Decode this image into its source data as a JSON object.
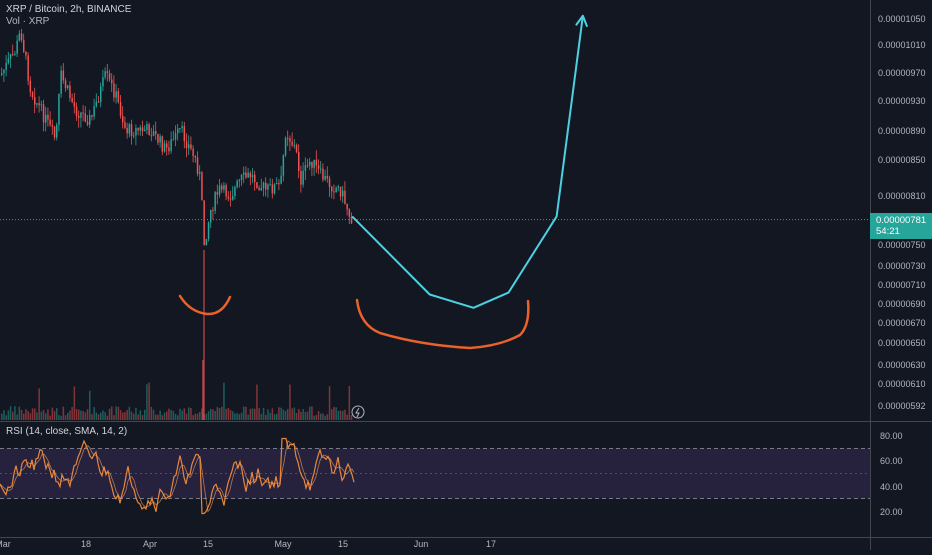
{
  "header": {
    "symbol": "XRP / Bitcoin, 2h, BINANCE",
    "volume": "Vol · XRP"
  },
  "rsi_header": {
    "label": "RSI (14, close, SMA, 14, 2)"
  },
  "last_price": {
    "value": "0.00000781",
    "countdown": "54:21"
  },
  "colors": {
    "background": "#131722",
    "candle_up": "#26a69a",
    "candle_down": "#ef5350",
    "projection": "#4dd0e1",
    "annotation": "#e8622c",
    "rsi_line": "#e8863a",
    "rsi_band": "#7e57c2"
  },
  "icons": [
    "lightning-icon"
  ],
  "chart_data": [
    {
      "type": "line",
      "title": "XRP / Bitcoin, 2h, BINANCE",
      "y_axis_side": "right",
      "y_tick_labels": [
        "0.00001050",
        "0.00001010",
        "0.00000970",
        "0.00000930",
        "0.00000890",
        "0.00000850",
        "0.00000810",
        "0.00000750",
        "0.00000730",
        "0.00000710",
        "0.00000690",
        "0.00000670",
        "0.00000650",
        "0.00000630",
        "0.00000610",
        "0.00000592"
      ],
      "x_tick_labels": [
        "Mar",
        "18",
        "Apr",
        "15",
        "May",
        "15",
        "Jun",
        "17"
      ],
      "last_price": 7.81e-06,
      "series": [
        {
          "name": "",
          "style": "projection",
          "x": [
            "May 17",
            "Jun 3",
            "Jun 13",
            "Jun 21",
            "Jul 2",
            "Jul 8"
          ],
          "y": [
            7.85e-06,
            7e-06,
            6.86e-06,
            7.02e-06,
            7.85e-06,
            1.055e-05
          ]
        }
      ],
      "grid": false
    },
    {
      "type": "line",
      "title": "RSI (14, close, SMA, 14, 2)",
      "ylim": [
        10,
        90
      ],
      "y_tick_labels": [
        "80.00",
        "60.00",
        "40.00",
        "20.00"
      ],
      "bands": [
        30,
        70
      ]
    }
  ]
}
